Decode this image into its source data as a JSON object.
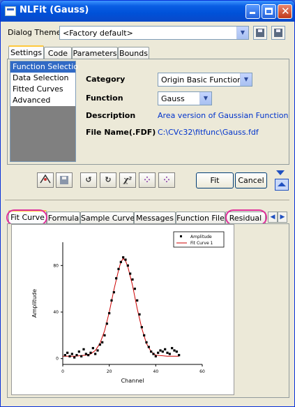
{
  "window": {
    "title": "NLFit (Gauss)"
  },
  "dialog_theme": {
    "label": "Dialog Theme",
    "value": "<Factory default>"
  },
  "top_tabs": [
    "Settings",
    "Code",
    "Parameters",
    "Bounds"
  ],
  "settings_list": [
    "Function Selection",
    "Data Selection",
    "Fitted Curves",
    "Advanced"
  ],
  "settings": {
    "category_label": "Category",
    "category_value": "Origin Basic Functions",
    "function_label": "Function",
    "function_value": "Gauss",
    "description_label": "Description",
    "description_value": "Area version of Gaussian Function",
    "file_label": "File Name(.FDF)",
    "file_value": "C:\\CVc32\\fitfunc\\Gauss.fdf"
  },
  "toolbar": {
    "chi2": "χ²",
    "fit": "Fit",
    "cancel": "Cancel"
  },
  "bottom_tabs": [
    "Fit Curve",
    "Formula",
    "Sample Curve",
    "Messages",
    "Function File",
    "Residual"
  ],
  "chart_data": {
    "type": "scatter",
    "xlabel": "Channel",
    "ylabel": "Amplitude",
    "xlim": [
      0,
      60
    ],
    "ylim": [
      -5,
      100
    ],
    "xticks": [
      "0",
      "20",
      "40",
      "60"
    ],
    "yticks": [
      "0",
      "40",
      "80"
    ],
    "legend": [
      "Amplitude",
      "Fit Curve 1"
    ],
    "legend_position": "top-right",
    "colors": {
      "points": "#000000",
      "fit": "#cc0000"
    },
    "series": [
      {
        "name": "Amplitude",
        "x": [
          1,
          2,
          3,
          4,
          5,
          6,
          7,
          8,
          9,
          10,
          11,
          12,
          13,
          14,
          15,
          16,
          17,
          18,
          19,
          20,
          21,
          22,
          23,
          24,
          25,
          26,
          27,
          28,
          29,
          30,
          31,
          32,
          33,
          34,
          35,
          36,
          37,
          38,
          39,
          40,
          41,
          42,
          43,
          44,
          45,
          46,
          47,
          48,
          49,
          50
        ],
        "y": [
          3,
          5,
          2,
          4,
          1,
          3,
          6,
          2,
          8,
          4,
          3,
          5,
          9,
          4,
          7,
          12,
          14,
          20,
          30,
          39,
          50,
          57,
          69,
          77,
          83,
          87,
          85,
          80,
          73,
          68,
          60,
          50,
          38,
          27,
          20,
          14,
          10,
          6,
          4,
          2,
          5,
          7,
          6,
          8,
          5,
          4,
          9,
          7,
          6,
          3
        ]
      },
      {
        "name": "Fit Curve 1",
        "x": [
          0,
          5,
          10,
          12,
          14,
          16,
          18,
          20,
          22,
          24,
          25,
          26,
          27,
          28,
          30,
          32,
          34,
          36,
          38,
          40,
          45,
          50
        ],
        "y": [
          2,
          2,
          3,
          4,
          7,
          13,
          24,
          40,
          59,
          76,
          83,
          86,
          84,
          79,
          63,
          43,
          26,
          13,
          6,
          3,
          2,
          2
        ]
      }
    ]
  }
}
